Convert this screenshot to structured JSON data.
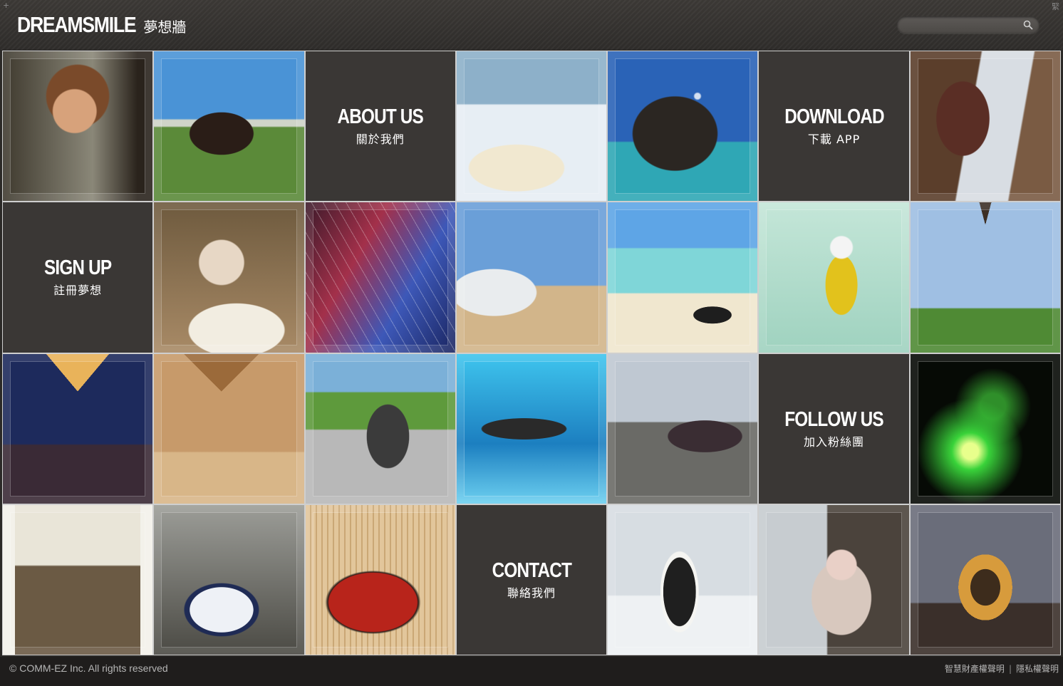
{
  "header": {
    "logo_en": "DREAMSMILE",
    "logo_zh": "夢想牆",
    "corner_left": "+",
    "corner_right": "緊",
    "search": {
      "value": "",
      "placeholder": ""
    }
  },
  "tiles": {
    "about": {
      "title": "ABOUT US",
      "subtitle": "關於我們"
    },
    "download": {
      "title": "DOWNLOAD",
      "subtitle": "下載 APP"
    },
    "signup": {
      "title": "SIGN UP",
      "subtitle": "註冊夢想"
    },
    "follow": {
      "title": "FOLLOW US",
      "subtitle": "加入粉絲團"
    },
    "contact": {
      "title": "CONTACT",
      "subtitle": "聯絡我們"
    }
  },
  "footer": {
    "copyright": "© COMM-EZ Inc. All rights reserved",
    "links": [
      "智慧財產權聲明",
      "隱私權聲明"
    ],
    "separator": "|"
  },
  "colors": {
    "tile_dark": "#3a3735",
    "grid_border": "#cfcfcf",
    "footer_bg": "#1f1d1c"
  }
}
